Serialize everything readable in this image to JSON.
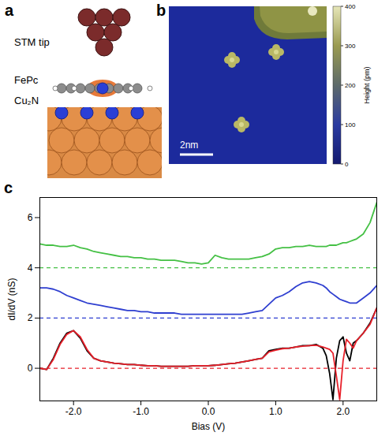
{
  "figure": {
    "panels": [
      {
        "letter": "a",
        "labels": [
          "STM tip",
          "FePc",
          "Cu₂N"
        ]
      },
      {
        "letter": "b",
        "scale_bar": "2nm",
        "colorbar": {
          "label": "Height (pm)",
          "range": [
            0,
            400
          ],
          "ticks": [
            0,
            100,
            200,
            300,
            400
          ]
        }
      },
      {
        "letter": "c"
      }
    ]
  },
  "chart_data": {
    "type": "line",
    "x_label": "Bias (V)",
    "y_label": "dI/dV (nS)",
    "xlim": [
      -2.5,
      2.5
    ],
    "ylim": [
      -1.3,
      6.8
    ],
    "xticks": [
      {
        "value": -2,
        "label": "-2.0"
      },
      {
        "value": -1,
        "label": "-1.0"
      },
      {
        "value": 0,
        "label": "0.0"
      },
      {
        "value": 1,
        "label": "1.0"
      },
      {
        "value": 2,
        "label": "2.0"
      }
    ],
    "yticks": [
      0,
      2,
      4,
      6
    ],
    "reference_lines": [
      {
        "value": 4,
        "color": "#44c044",
        "line_style": "dashed"
      },
      {
        "value": 2,
        "color": "#2f3fd0",
        "line_style": "dashed"
      },
      {
        "value": 0,
        "color": "#e8202a",
        "line_style": "dashed"
      }
    ],
    "x": [
      -2.5,
      -2.4,
      -2.3,
      -2.2,
      -2.1,
      -2.0,
      -1.9,
      -1.8,
      -1.7,
      -1.6,
      -1.5,
      -1.4,
      -1.3,
      -1.2,
      -1.1,
      -1.0,
      -0.9,
      -0.8,
      -0.7,
      -0.6,
      -0.5,
      -0.4,
      -0.3,
      -0.2,
      -0.1,
      0.0,
      0.1,
      0.2,
      0.3,
      0.4,
      0.5,
      0.6,
      0.7,
      0.8,
      0.9,
      1.0,
      1.1,
      1.2,
      1.3,
      1.4,
      1.5,
      1.6,
      1.7,
      1.75,
      1.8,
      1.85,
      1.9,
      1.95,
      2.0,
      2.05,
      2.1,
      2.15,
      2.2,
      2.3,
      2.4,
      2.5
    ],
    "series": [
      {
        "color": "#44c044",
        "values": [
          4.95,
          4.9,
          4.9,
          4.85,
          4.85,
          4.9,
          4.8,
          4.75,
          4.65,
          4.6,
          4.55,
          4.5,
          4.45,
          4.45,
          4.4,
          4.4,
          4.35,
          4.35,
          4.3,
          4.3,
          4.3,
          4.25,
          4.2,
          4.2,
          4.15,
          4.2,
          4.5,
          4.4,
          4.35,
          4.35,
          4.35,
          4.35,
          4.4,
          4.45,
          4.55,
          4.75,
          4.8,
          4.8,
          4.85,
          4.85,
          4.9,
          4.85,
          4.85,
          4.85,
          4.9,
          4.9,
          4.9,
          4.95,
          5.0,
          5.0,
          5.05,
          5.1,
          5.15,
          5.35,
          5.8,
          6.6
        ]
      },
      {
        "color": "#2f3fd0",
        "values": [
          3.2,
          3.2,
          3.15,
          3.05,
          2.9,
          2.8,
          2.7,
          2.6,
          2.55,
          2.5,
          2.45,
          2.4,
          2.35,
          2.3,
          2.3,
          2.25,
          2.25,
          2.2,
          2.2,
          2.2,
          2.2,
          2.15,
          2.15,
          2.15,
          2.15,
          2.15,
          2.15,
          2.15,
          2.15,
          2.15,
          2.15,
          2.2,
          2.25,
          2.3,
          2.55,
          2.8,
          2.9,
          3.05,
          3.25,
          3.4,
          3.45,
          3.4,
          3.3,
          3.2,
          3.05,
          2.95,
          2.85,
          2.75,
          2.7,
          2.65,
          2.6,
          2.6,
          2.6,
          2.8,
          3.0,
          3.3
        ]
      },
      {
        "color": "#000000",
        "values": [
          0.0,
          -0.05,
          0.4,
          1.0,
          1.4,
          1.5,
          1.2,
          0.7,
          0.4,
          0.3,
          0.25,
          0.2,
          0.18,
          0.15,
          0.15,
          0.12,
          0.1,
          0.1,
          0.08,
          0.08,
          0.08,
          0.08,
          0.08,
          0.1,
          0.1,
          0.1,
          0.12,
          0.15,
          0.18,
          0.2,
          0.25,
          0.3,
          0.35,
          0.4,
          0.7,
          0.75,
          0.8,
          0.8,
          0.85,
          0.9,
          0.9,
          0.95,
          0.8,
          0.5,
          -0.2,
          -1.25,
          0.4,
          1.1,
          1.25,
          0.6,
          0.3,
          1.0,
          1.1,
          1.4,
          1.8,
          2.4
        ]
      },
      {
        "color": "#e8202a",
        "values": [
          0.0,
          -0.05,
          0.35,
          0.95,
          1.35,
          1.5,
          1.25,
          0.75,
          0.4,
          0.3,
          0.25,
          0.2,
          0.18,
          0.15,
          0.15,
          0.12,
          0.1,
          0.1,
          0.08,
          0.08,
          0.08,
          0.08,
          0.08,
          0.1,
          0.1,
          0.1,
          0.12,
          0.15,
          0.18,
          0.2,
          0.25,
          0.3,
          0.35,
          0.4,
          0.65,
          0.72,
          0.78,
          0.8,
          0.85,
          0.88,
          0.9,
          0.92,
          0.85,
          0.8,
          0.75,
          0.6,
          -0.3,
          -1.25,
          0.3,
          1.15,
          1.0,
          0.8,
          1.1,
          1.4,
          1.75,
          2.4
        ]
      }
    ]
  }
}
